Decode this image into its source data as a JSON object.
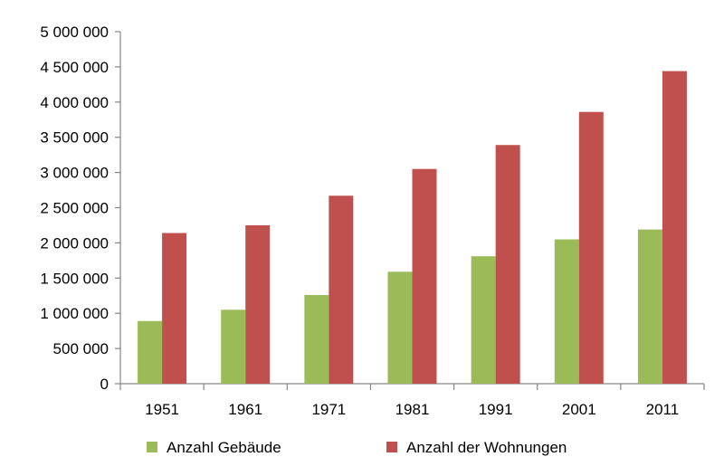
{
  "chart_data": {
    "type": "bar",
    "categories": [
      "1951",
      "1961",
      "1971",
      "1981",
      "1991",
      "2001",
      "2011"
    ],
    "series": [
      {
        "name": "Anzahl Gebäude",
        "color": "#9bbb59",
        "values": [
          890000,
          1050000,
          1260000,
          1590000,
          1810000,
          2050000,
          2190000
        ]
      },
      {
        "name": "Anzahl der Wohnungen",
        "color": "#c0504d",
        "values": [
          2140000,
          2250000,
          2670000,
          3050000,
          3390000,
          3860000,
          4440000
        ]
      }
    ],
    "ylim": [
      0,
      5000000
    ],
    "yticks": [
      {
        "value": 0,
        "label": "0"
      },
      {
        "value": 500000,
        "label": "500 000"
      },
      {
        "value": 1000000,
        "label": "1 000 000"
      },
      {
        "value": 1500000,
        "label": "1 500 000"
      },
      {
        "value": 2000000,
        "label": "2 000 000"
      },
      {
        "value": 2500000,
        "label": "2 500 000"
      },
      {
        "value": 3000000,
        "label": "3 000 000"
      },
      {
        "value": 3500000,
        "label": "3 500 000"
      },
      {
        "value": 4000000,
        "label": "4 000 000"
      },
      {
        "value": 4500000,
        "label": "4 500 000"
      },
      {
        "value": 5000000,
        "label": "5 000 000"
      }
    ],
    "title": "",
    "xlabel": "",
    "ylabel": "",
    "grid": false,
    "legend": "bottom"
  }
}
